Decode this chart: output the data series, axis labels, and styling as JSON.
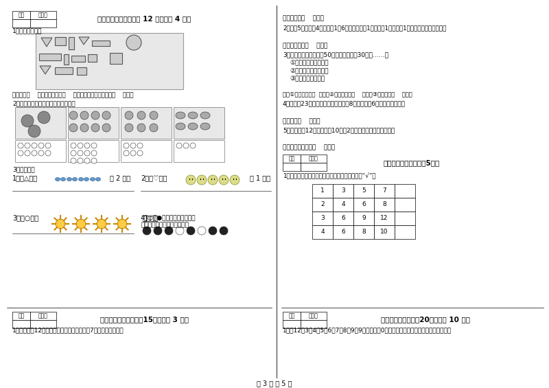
{
  "background_color": "#ffffff",
  "footer_text": "第 3 页 共 5 页",
  "left_section": {
    "score_box_label": [
      "得分",
      "评卷人"
    ],
    "section7_title": "七、看图说话（本题共 12 分，每题 4 分）",
    "q1_label": "1．看图找一找．",
    "shapes_box_note": "长方体有（    ）个，圆柱体有（    ）个，三角形和圆一共有（    ）个．",
    "q2_label": "2．看图解题，对应的图与数连一连．",
    "q3_label": "3．画一画．",
    "draw1_prefix": "1．画△，比",
    "draw1_suffix": "多 2 个．",
    "draw2_prefix": "2．画♡，比",
    "draw2_suffix": "少 1 个．",
    "draw3_prefix": "3．画○，和",
    "draw3_suffix": "同样多．",
    "draw4_line1": "4．○和●谁多？你能接着画少",
    "draw4_line2": "珠子，使两种珠子同样多吗？"
  },
  "right_section": {
    "ans1": "答：还能送（    ）笱．",
    "q2_text": "2．铅筢5角，橡皮4角，钉筱1公6角，爸爸给了1公元，戗1块橡皮和1支铅笔还应找回多少錢？",
    "ans2": "答：还应找回（    ）角．",
    "q3_text": "3．商店两次卖出洋娃切50个，第一次卖出30个，……？",
    "q3_sub1": "①第一次卖出多少个？",
    "q3_sub2": "②第二次卖出多少个？",
    "q3_sub3": "③两次卖出多少个？",
    "ans3": "答：①第一次卖出（  ）个，②第二次卖出（    ）个，③两次卖出（    ）个．",
    "q4_text": "4．小明用23元錢买了两种商品，皮獸8元，文具盒6元，还剩多少元？",
    "ans4": "答：还剩（    ）元．",
    "q5_text": "5．小明今年12岁，小盈今10岁，2年后，小明比小盈大几岁？",
    "ans5": "答：小明比小盈大（    ）岁．",
    "score_box_label": [
      "得分",
      "评卷人"
    ],
    "section9_title": "九、个性空间（本题兲5分）",
    "q9_text": "1．我能按规律接着写下去，并在不一样的后面画“√”．",
    "table_data": [
      [
        "1",
        "3",
        "5",
        "7",
        ""
      ],
      [
        "2",
        "4",
        "6",
        "8",
        ""
      ],
      [
        "3",
        "6",
        "9",
        "12",
        ""
      ],
      [
        "4",
        "6",
        "8",
        "10",
        ""
      ]
    ]
  },
  "bottom_left": {
    "score_box_label": [
      "得分",
      "评卷人"
    ],
    "section8_title": "八、解决问题（本题內15分，每题 3 分）",
    "q1_text": "1．学校要抄12笱文具送给山区小学，已送去7笱，还要送几笱？"
  },
  "bottom_right": {
    "score_box_label": [
      "得分",
      "评卷人"
    ],
    "section10_title": "十、附加题（本题內20分，每题 10 分）",
    "q1_text": "1．抄12，3，4，5，6，7，8，9这9个数字填入0里，使横行、竖行和斜行上三个数字相加"
  }
}
